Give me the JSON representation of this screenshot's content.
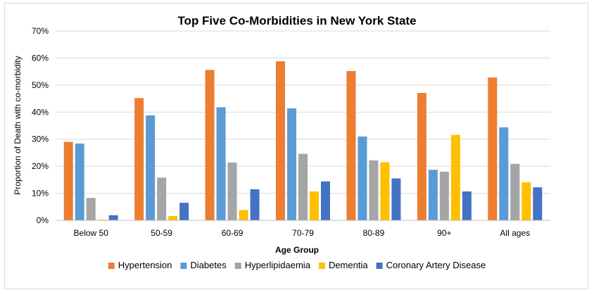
{
  "chart_data": {
    "type": "bar",
    "title": "Top Five Co-Morbidities in New York State",
    "xlabel": "Age Group",
    "ylabel": "Proportion of Death with co-morbidity",
    "ylim": [
      0,
      70
    ],
    "yticks": [
      "0%",
      "10%",
      "20%",
      "30%",
      "40%",
      "50%",
      "60%",
      "70%"
    ],
    "grid": true,
    "legend_position": "bottom",
    "categories": [
      "Below 50",
      "50-59",
      "60-69",
      "70-79",
      "80-89",
      "90+",
      "All ages"
    ],
    "series": [
      {
        "name": "Hypertension",
        "color": "#ED7D31",
        "values": [
          29,
          45.2,
          55.6,
          58.8,
          55.2,
          47.1,
          52.8
        ]
      },
      {
        "name": "Diabetes",
        "color": "#5B9BD5",
        "values": [
          28.4,
          38.8,
          41.8,
          41.4,
          31,
          18.7,
          34.4
        ]
      },
      {
        "name": "Hyperlipidaemia",
        "color": "#A5A5A5",
        "values": [
          8.3,
          15.8,
          21.4,
          24.6,
          22.2,
          18,
          20.9
        ]
      },
      {
        "name": "Dementia",
        "color": "#FFC000",
        "values": [
          0.3,
          1.6,
          3.8,
          10.7,
          21.5,
          31.6,
          14.1
        ]
      },
      {
        "name": "Coronary Artery Disease",
        "color": "#4472C4",
        "values": [
          1.9,
          6.5,
          11.5,
          14.4,
          15.5,
          10.7,
          12.2
        ]
      }
    ]
  }
}
